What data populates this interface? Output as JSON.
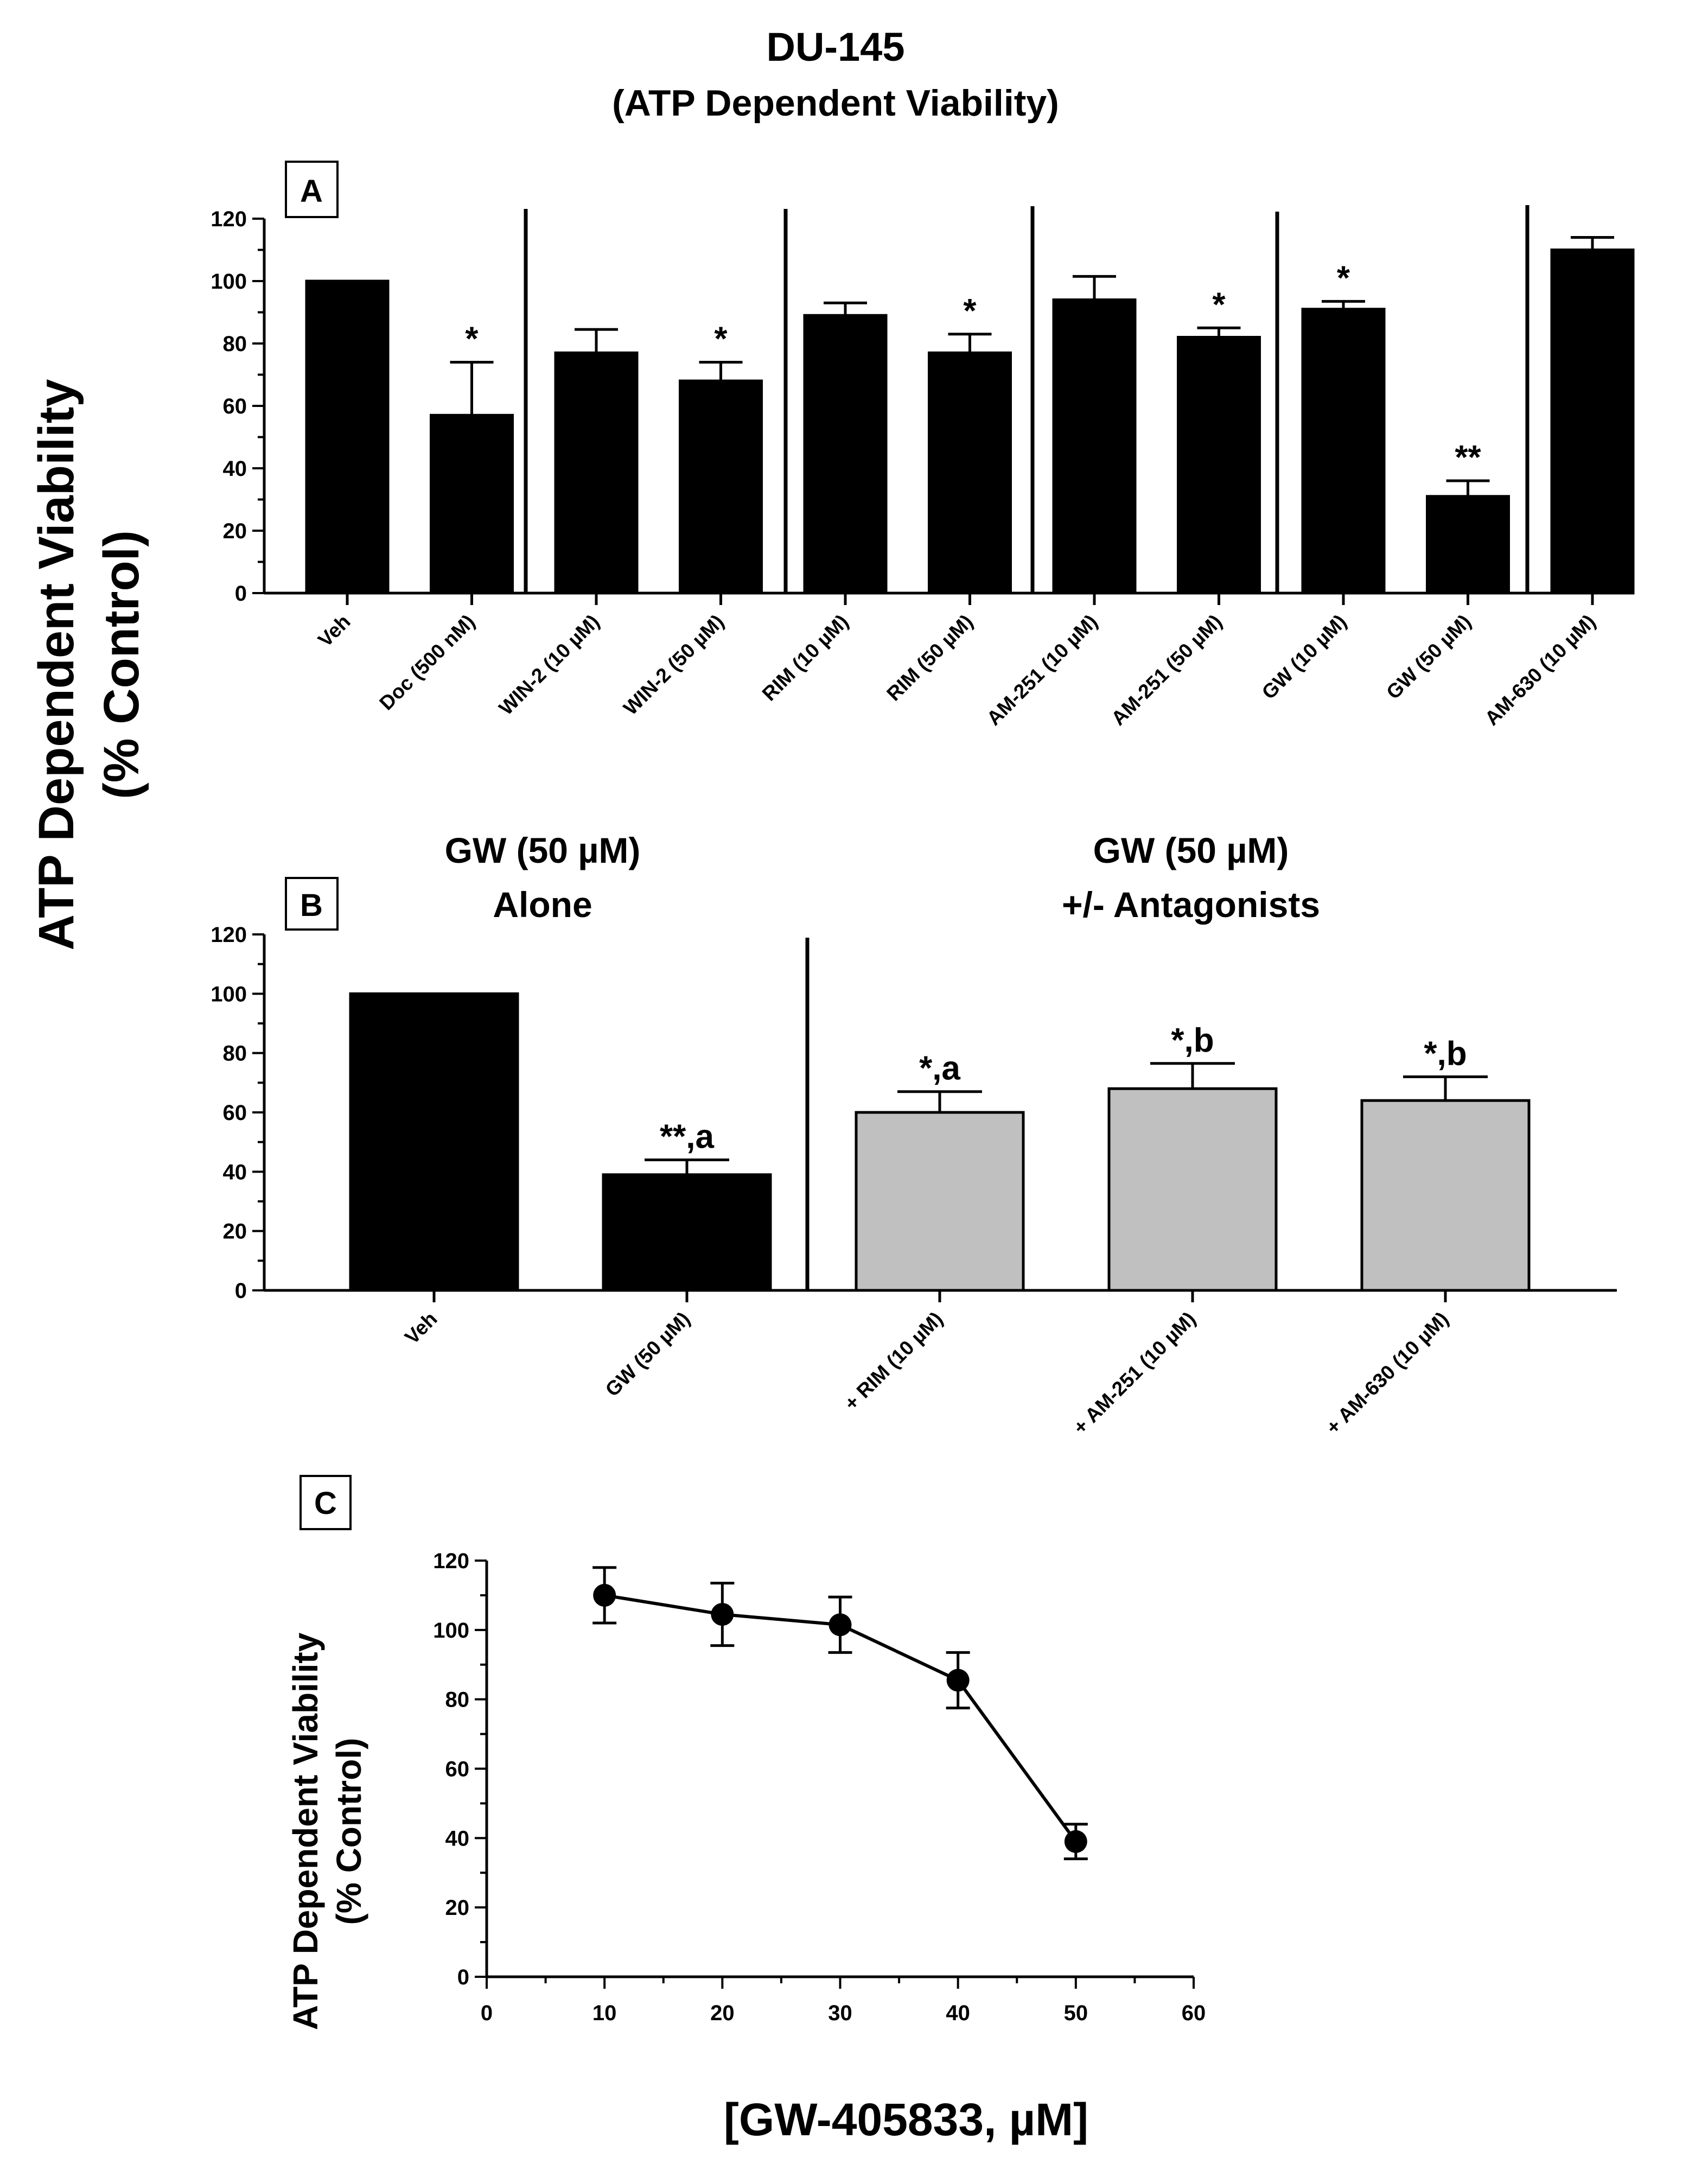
{
  "chart_data": [
    {
      "panel": "A",
      "type": "bar",
      "title": "DU-145",
      "subtitle": "(ATP Dependent Viability)",
      "ylabel_line1": "ATP Dependent Viability",
      "ylabel_line2": "(% Control)",
      "ylim": [
        0,
        120
      ],
      "yticks": [
        0,
        20,
        40,
        60,
        80,
        100,
        120
      ],
      "categories": [
        "Veh",
        "Doc (500 nM)",
        "WIN-2 (10 µM)",
        "WIN-2 (50 µM)",
        "RIM (10 µM)",
        "RIM (50 µM)",
        "AM-251 (10 µM)",
        "AM-251 (50 µM)",
        "GW (10 µM)",
        "GW (50 µM)",
        "AM-630 (10 µM)"
      ],
      "values": [
        100,
        57,
        77,
        68,
        89,
        77,
        94,
        82,
        91,
        31,
        110
      ],
      "errors": [
        0,
        17,
        7.5,
        6,
        4,
        6,
        7.5,
        3,
        2.5,
        5,
        4
      ],
      "annotations": [
        "",
        "*",
        "",
        "*",
        "",
        "*",
        "",
        "*",
        "*",
        "**",
        ""
      ],
      "bar_color": "#000000"
    },
    {
      "panel": "B",
      "type": "bar",
      "group_labels": [
        {
          "line1": "GW (50 µM)",
          "line2": "Alone"
        },
        {
          "line1": "GW (50 µM)",
          "line2": "+/- Antagonists"
        }
      ],
      "ylim": [
        0,
        120
      ],
      "yticks": [
        0,
        20,
        40,
        60,
        80,
        100,
        120
      ],
      "categories": [
        "Veh",
        "GW (50 µM)",
        "+ RIM (10 µM)",
        "+ AM-251 (10 µM)",
        "+ AM-630 (10 µM)"
      ],
      "values": [
        100,
        39,
        60,
        68,
        64
      ],
      "errors": [
        0,
        5,
        7,
        8.5,
        8
      ],
      "annotations": [
        "",
        "**,a",
        "*,a",
        "*,b",
        "*,b"
      ],
      "bar_colors": [
        "#000000",
        "#000000",
        "#c0c0c0",
        "#c0c0c0",
        "#c0c0c0"
      ]
    },
    {
      "panel": "C",
      "type": "line",
      "ylabel_line1": "ATP Dependent Viability",
      "ylabel_line2": "(% Control)",
      "xlabel": "[GW-405833, µM]",
      "xlim": [
        0,
        60
      ],
      "ylim": [
        0,
        120
      ],
      "xticks": [
        0,
        10,
        20,
        30,
        40,
        50,
        60
      ],
      "yticks": [
        0,
        20,
        40,
        60,
        80,
        100,
        120
      ],
      "x": [
        10,
        20,
        30,
        40,
        50
      ],
      "y": [
        110,
        104.5,
        101.5,
        85.5,
        39
      ],
      "errors": [
        8,
        9,
        8,
        8,
        5
      ]
    }
  ]
}
